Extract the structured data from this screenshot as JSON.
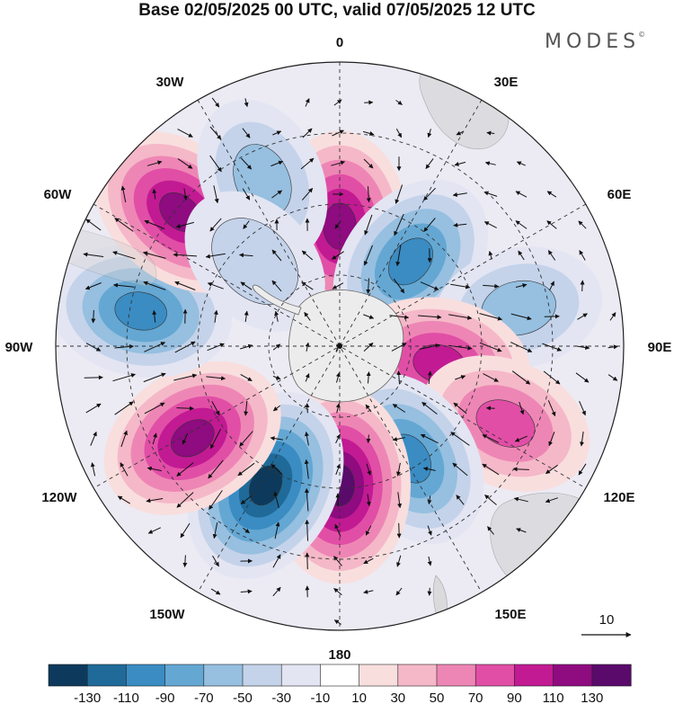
{
  "title": "Base 02/05/2025 00 UTC, valid 07/05/2025 12 UTC",
  "brand": "MODES",
  "brand_mark": "©",
  "longitude_labels": {
    "lon_0": "0",
    "lon_30e": "30E",
    "lon_60e": "60E",
    "lon_90e": "90E",
    "lon_120e": "120E",
    "lon_150e": "150E",
    "lon_180": "180",
    "lon_150w": "150W",
    "lon_120w": "120W",
    "lon_90w": "90W",
    "lon_60w": "60W",
    "lon_30w": "30W"
  },
  "reference_vector_label": "10",
  "colorbar": {
    "colors": [
      "#0d3a5c",
      "#1f6a99",
      "#3a8cc3",
      "#64a7d3",
      "#96bfe0",
      "#c4d3ea",
      "#e3e5f2",
      "#ffffff",
      "#f9dede",
      "#f5b8c8",
      "#ee86b5",
      "#e14ea6",
      "#c21a93",
      "#8e0b80",
      "#5a0a6b"
    ],
    "tick_labels": [
      "-130",
      "-110",
      "-90",
      "-70",
      "-50",
      "-30",
      "-10",
      "10",
      "30",
      "50",
      "70",
      "90",
      "110",
      "130"
    ]
  },
  "anomaly_cells": [
    {
      "sign": "positive",
      "level": 110,
      "lon_deg": 0,
      "colat_deg": 38
    },
    {
      "sign": "negative",
      "level": -90,
      "lon_deg": 40,
      "colat_deg": 35
    },
    {
      "sign": "negative",
      "level": -50,
      "lon_deg": 78,
      "colat_deg": 58
    },
    {
      "sign": "positive",
      "level": 90,
      "lon_deg": 100,
      "colat_deg": 32
    },
    {
      "sign": "positive",
      "level": 70,
      "lon_deg": 115,
      "colat_deg": 58
    },
    {
      "sign": "negative",
      "level": -90,
      "lon_deg": 148,
      "colat_deg": 42
    },
    {
      "sign": "positive",
      "level": 130,
      "lon_deg": 180,
      "colat_deg": 44
    },
    {
      "sign": "negative",
      "level": -130,
      "lon_deg": -152,
      "colat_deg": 50
    },
    {
      "sign": "positive",
      "level": 110,
      "lon_deg": -122,
      "colat_deg": 55
    },
    {
      "sign": "negative",
      "level": -90,
      "lon_deg": -80,
      "colat_deg": 64
    },
    {
      "sign": "positive",
      "level": 110,
      "lon_deg": -50,
      "colat_deg": 66
    },
    {
      "sign": "negative",
      "level": -50,
      "lon_deg": -25,
      "colat_deg": 58
    },
    {
      "sign": "negative",
      "level": -30,
      "lon_deg": -45,
      "colat_deg": 38
    }
  ]
}
